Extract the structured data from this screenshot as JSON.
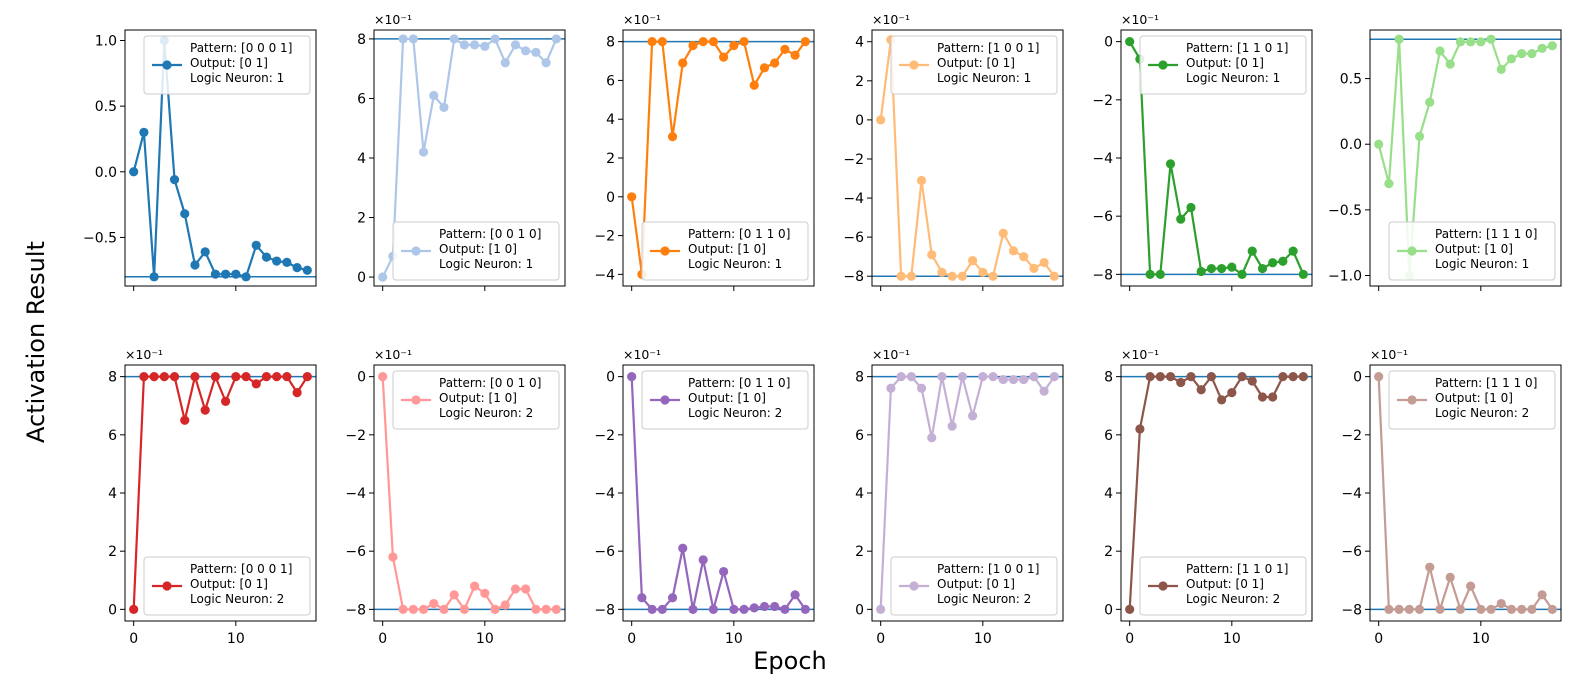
{
  "figure": {
    "xlabel": "Epoch",
    "ylabel": "Activation Result",
    "reference_line_color": "#1f77b4"
  },
  "chart_data": [
    {
      "type": "line",
      "legend": [
        "Pattern: [0 0 0 1]",
        "Output: [0 1]",
        "Logic Neuron: 1"
      ],
      "legend_loc": "upper right",
      "color": "#1f77b4",
      "multiplier": "",
      "ylim": [
        -0.87,
        1.08
      ],
      "yticks": [
        1.0,
        0.5,
        0.0,
        -0.5
      ],
      "ytick_labels": [
        "1.0",
        "0.5",
        "0.0",
        "−0.5"
      ],
      "reference_y": -0.8,
      "x": [
        0,
        1,
        2,
        3,
        4,
        5,
        6,
        7,
        8,
        9,
        10,
        11,
        12,
        13,
        14,
        15,
        16,
        17
      ],
      "values": [
        0.0,
        0.3,
        -0.8,
        1.0,
        -0.06,
        -0.32,
        -0.71,
        -0.61,
        -0.78,
        -0.78,
        -0.78,
        -0.8,
        -0.56,
        -0.65,
        -0.68,
        -0.69,
        -0.73,
        -0.75
      ]
    },
    {
      "type": "line",
      "legend": [
        "Pattern: [0 0 1 0]",
        "Output: [1 0]",
        "Logic Neuron: 1"
      ],
      "legend_loc": "lower right",
      "color": "#aec7e8",
      "multiplier": "×10⁻¹",
      "ylim": [
        -0.3,
        8.3
      ],
      "yticks": [
        8,
        6,
        4,
        2,
        0
      ],
      "ytick_labels": [
        "8",
        "6",
        "4",
        "2",
        "0"
      ],
      "reference_y": 8,
      "x": [
        0,
        1,
        2,
        3,
        4,
        5,
        6,
        7,
        8,
        9,
        10,
        11,
        12,
        13,
        14,
        15,
        16,
        17
      ],
      "values": [
        0.0,
        0.7,
        8.0,
        8.0,
        4.2,
        6.1,
        5.7,
        8.0,
        7.8,
        7.8,
        7.75,
        8.0,
        7.2,
        7.8,
        7.6,
        7.55,
        7.2,
        8.0
      ]
    },
    {
      "type": "line",
      "legend": [
        "Pattern: [0 1 1 0]",
        "Output: [1 0]",
        "Logic Neuron: 1"
      ],
      "legend_loc": "lower right",
      "color": "#ff7f0e",
      "multiplier": "×10⁻¹",
      "ylim": [
        -4.6,
        8.6
      ],
      "yticks": [
        8,
        6,
        4,
        2,
        0,
        -2,
        -4
      ],
      "ytick_labels": [
        "8",
        "6",
        "4",
        "2",
        "0",
        "−2",
        "−4"
      ],
      "reference_y": 8,
      "x": [
        0,
        1,
        2,
        3,
        4,
        5,
        6,
        7,
        8,
        9,
        10,
        11,
        12,
        13,
        14,
        15,
        16,
        17
      ],
      "values": [
        0.0,
        -4.0,
        8.0,
        8.0,
        3.1,
        6.9,
        7.8,
        8.0,
        8.0,
        7.2,
        7.8,
        8.0,
        5.75,
        6.65,
        6.9,
        7.6,
        7.3,
        8.0
      ]
    },
    {
      "type": "line",
      "legend": [
        "Pattern: [1 0 0 1]",
        "Output: [0 1]",
        "Logic Neuron: 1"
      ],
      "legend_loc": "upper right",
      "color": "#ffbb78",
      "multiplier": "×10⁻¹",
      "ylim": [
        -8.5,
        4.6
      ],
      "yticks": [
        4,
        2,
        0,
        -2,
        -4,
        -6,
        -8
      ],
      "ytick_labels": [
        "4",
        "2",
        "0",
        "−2",
        "−4",
        "−6",
        "−8"
      ],
      "reference_y": -8,
      "x": [
        0,
        1,
        2,
        3,
        4,
        5,
        6,
        7,
        8,
        9,
        10,
        11,
        12,
        13,
        14,
        15,
        16,
        17
      ],
      "values": [
        0.0,
        4.1,
        -8.0,
        -8.0,
        -3.1,
        -6.9,
        -7.8,
        -8.0,
        -8.0,
        -7.2,
        -7.8,
        -8.0,
        -5.8,
        -6.7,
        -7.0,
        -7.6,
        -7.3,
        -8.0
      ]
    },
    {
      "type": "line",
      "legend": [
        "Pattern: [1 1 0 1]",
        "Output: [0 1]",
        "Logic Neuron: 1"
      ],
      "legend_loc": "upper right",
      "color": "#2ca02c",
      "multiplier": "×10⁻¹",
      "ylim": [
        -8.4,
        0.4
      ],
      "yticks": [
        0,
        -2,
        -4,
        -6,
        -8
      ],
      "ytick_labels": [
        "0",
        "−2",
        "−4",
        "−6",
        "−8"
      ],
      "reference_y": -8,
      "x": [
        0,
        1,
        2,
        3,
        4,
        5,
        6,
        7,
        8,
        9,
        10,
        11,
        12,
        13,
        14,
        15,
        16,
        17
      ],
      "values": [
        0.0,
        -0.6,
        -8.0,
        -8.0,
        -4.2,
        -6.1,
        -5.7,
        -7.9,
        -7.8,
        -7.8,
        -7.75,
        -8.0,
        -7.2,
        -7.8,
        -7.6,
        -7.55,
        -7.2,
        -8.0
      ]
    },
    {
      "type": "line",
      "legend": [
        "Pattern: [1 1 1 0]",
        "Output: [1 0]",
        "Logic Neuron: 1"
      ],
      "legend_loc": "lower right",
      "color": "#98df8a",
      "multiplier": "",
      "ylim": [
        -1.08,
        0.87
      ],
      "yticks": [
        0.5,
        0.0,
        -0.5,
        -1.0
      ],
      "ytick_labels": [
        "0.5",
        "0.0",
        "−0.5",
        "−1.0"
      ],
      "reference_y": 0.8,
      "x": [
        0,
        1,
        2,
        3,
        4,
        5,
        6,
        7,
        8,
        9,
        10,
        11,
        12,
        13,
        14,
        15,
        16,
        17
      ],
      "values": [
        0.0,
        -0.3,
        0.8,
        -1.0,
        0.06,
        0.32,
        0.71,
        0.61,
        0.78,
        0.78,
        0.78,
        0.8,
        0.57,
        0.65,
        0.69,
        0.69,
        0.73,
        0.75
      ]
    },
    {
      "type": "line",
      "legend": [
        "Pattern: [0 0 0 1]",
        "Output: [0 1]",
        "Logic Neuron: 2"
      ],
      "legend_loc": "lower right",
      "color": "#d62728",
      "multiplier": "×10⁻¹",
      "ylim": [
        -0.4,
        8.4
      ],
      "yticks": [
        8,
        6,
        4,
        2,
        0
      ],
      "ytick_labels": [
        "8",
        "6",
        "4",
        "2",
        "0"
      ],
      "reference_y": 8,
      "x": [
        0,
        1,
        2,
        3,
        4,
        5,
        6,
        7,
        8,
        9,
        10,
        11,
        12,
        13,
        14,
        15,
        16,
        17
      ],
      "values": [
        0.0,
        8.0,
        8.0,
        8.0,
        8.0,
        6.5,
        8.0,
        6.85,
        8.0,
        7.15,
        8.0,
        8.0,
        7.75,
        8.0,
        8.0,
        8.0,
        7.45,
        8.0
      ]
    },
    {
      "type": "line",
      "legend": [
        "Pattern: [0 0 1 0]",
        "Output: [1 0]",
        "Logic Neuron: 2"
      ],
      "legend_loc": "upper right",
      "color": "#ff9896",
      "multiplier": "×10⁻¹",
      "ylim": [
        -8.4,
        0.4
      ],
      "yticks": [
        0,
        -2,
        -4,
        -6,
        -8
      ],
      "ytick_labels": [
        "0",
        "−2",
        "−4",
        "−6",
        "−8"
      ],
      "reference_y": -8,
      "x": [
        0,
        1,
        2,
        3,
        4,
        5,
        6,
        7,
        8,
        9,
        10,
        11,
        12,
        13,
        14,
        15,
        16,
        17
      ],
      "values": [
        0.0,
        -6.2,
        -8.0,
        -8.0,
        -8.0,
        -7.8,
        -8.0,
        -7.5,
        -8.0,
        -7.2,
        -7.45,
        -8.0,
        -7.85,
        -7.3,
        -7.3,
        -8.0,
        -8.0,
        -8.0
      ]
    },
    {
      "type": "line",
      "legend": [
        "Pattern: [0 1 1 0]",
        "Output: [1 0]",
        "Logic Neuron: 2"
      ],
      "legend_loc": "upper right",
      "color": "#9467bd",
      "multiplier": "×10⁻¹",
      "ylim": [
        -8.4,
        0.4
      ],
      "yticks": [
        0,
        -2,
        -4,
        -6,
        -8
      ],
      "ytick_labels": [
        "0",
        "−2",
        "−4",
        "−6",
        "−8"
      ],
      "reference_y": -8,
      "x": [
        0,
        1,
        2,
        3,
        4,
        5,
        6,
        7,
        8,
        9,
        10,
        11,
        12,
        13,
        14,
        15,
        16,
        17
      ],
      "values": [
        0.0,
        -7.6,
        -8.0,
        -8.0,
        -7.6,
        -5.9,
        -8.0,
        -6.3,
        -8.0,
        -6.7,
        -8.0,
        -8.0,
        -7.95,
        -7.9,
        -7.9,
        -8.0,
        -7.5,
        -8.0
      ]
    },
    {
      "type": "line",
      "legend": [
        "Pattern: [1 0 0 1]",
        "Output: [0 1]",
        "Logic Neuron: 2"
      ],
      "legend_loc": "lower right",
      "color": "#c5b0d5",
      "multiplier": "×10⁻¹",
      "ylim": [
        -0.4,
        8.4
      ],
      "yticks": [
        8,
        6,
        4,
        2,
        0
      ],
      "ytick_labels": [
        "8",
        "6",
        "4",
        "2",
        "0"
      ],
      "reference_y": 8,
      "x": [
        0,
        1,
        2,
        3,
        4,
        5,
        6,
        7,
        8,
        9,
        10,
        11,
        12,
        13,
        14,
        15,
        16,
        17
      ],
      "values": [
        0.0,
        7.6,
        8.0,
        8.0,
        7.6,
        5.9,
        8.0,
        6.3,
        8.0,
        6.65,
        8.0,
        8.0,
        7.9,
        7.9,
        7.9,
        8.0,
        7.5,
        8.0
      ]
    },
    {
      "type": "line",
      "legend": [
        "Pattern: [1 1 0 1]",
        "Output: [0 1]",
        "Logic Neuron: 2"
      ],
      "legend_loc": "lower right",
      "color": "#8c564b",
      "multiplier": "×10⁻¹",
      "ylim": [
        -0.4,
        8.4
      ],
      "yticks": [
        8,
        6,
        4,
        2,
        0
      ],
      "ytick_labels": [
        "8",
        "6",
        "4",
        "2",
        "0"
      ],
      "reference_y": 8,
      "x": [
        0,
        1,
        2,
        3,
        4,
        5,
        6,
        7,
        8,
        9,
        10,
        11,
        12,
        13,
        14,
        15,
        16,
        17
      ],
      "values": [
        0.0,
        6.2,
        8.0,
        8.0,
        8.0,
        7.8,
        8.0,
        7.55,
        8.0,
        7.2,
        7.45,
        8.0,
        7.85,
        7.3,
        7.3,
        8.0,
        8.0,
        8.0
      ]
    },
    {
      "type": "line",
      "legend": [
        "Pattern: [1 1 1 0]",
        "Output: [1 0]",
        "Logic Neuron: 2"
      ],
      "legend_loc": "upper right",
      "color": "#c49c94",
      "multiplier": "×10⁻¹",
      "ylim": [
        -8.4,
        0.4
      ],
      "yticks": [
        0,
        -2,
        -4,
        -6,
        -8
      ],
      "ytick_labels": [
        "0",
        "−2",
        "−4",
        "−6",
        "−8"
      ],
      "reference_y": -8,
      "x": [
        0,
        1,
        2,
        3,
        4,
        5,
        6,
        7,
        8,
        9,
        10,
        11,
        12,
        13,
        14,
        15,
        16,
        17
      ],
      "values": [
        0.0,
        -8.0,
        -8.0,
        -8.0,
        -8.0,
        -6.55,
        -8.0,
        -6.9,
        -8.0,
        -7.2,
        -8.0,
        -8.0,
        -7.8,
        -8.0,
        -8.0,
        -8.0,
        -7.5,
        -8.0
      ]
    }
  ]
}
